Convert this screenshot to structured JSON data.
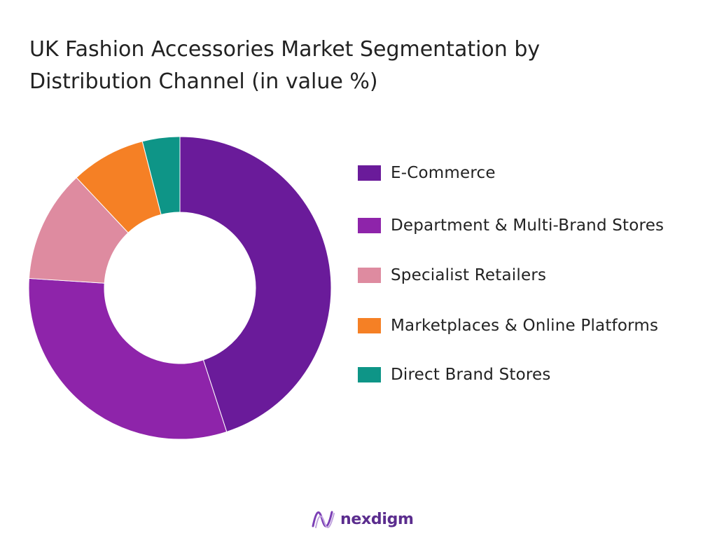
{
  "chart_data": {
    "type": "pie",
    "style": "donut",
    "title": "UK Fashion Accessories Market Segmentation by Distribution Channel (in value %)",
    "categories": [
      "E-Commerce",
      "Department & Multi-Brand Stores",
      "Specialist Retailers",
      "Marketplaces & Online Platforms",
      "Direct Brand Stores"
    ],
    "values": [
      45,
      31,
      12,
      8,
      4
    ],
    "colors": [
      "#6a1b9a",
      "#8e24aa",
      "#de8ba0",
      "#f58025",
      "#0e9587"
    ],
    "legend_position": "right"
  },
  "brand": {
    "name": "nexdigm",
    "logo_icon": "nexdigm-wave-logo"
  }
}
